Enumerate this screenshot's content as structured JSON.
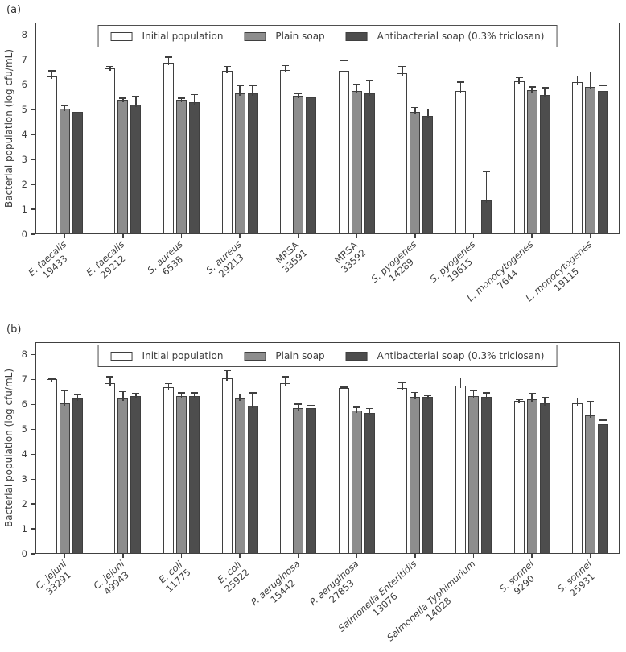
{
  "ylabel": "Bacterial population (log cfu/mL)",
  "chart_data": [
    {
      "type": "bar",
      "panel_label": "(a)",
      "ylabel": "Bacterial population (log cfu/mL)",
      "ylim": [
        0,
        8.5
      ],
      "yticks": [
        0,
        1,
        2,
        3,
        4,
        5,
        6,
        7,
        8
      ],
      "grid": false,
      "legend_position": "top-center-inside",
      "categories": [
        {
          "name": "E. faecalis",
          "strain": "19433",
          "italic": true
        },
        {
          "name": "E. faecalis",
          "strain": "29212",
          "italic": true
        },
        {
          "name": "S. aureus",
          "strain": "6538",
          "italic": true
        },
        {
          "name": "S. aureus",
          "strain": "29213",
          "italic": true
        },
        {
          "name": "MRSA",
          "strain": "33591",
          "italic": false
        },
        {
          "name": "MRSA",
          "strain": "33592",
          "italic": false
        },
        {
          "name": "S. pyogenes",
          "strain": "14289",
          "italic": true
        },
        {
          "name": "S. pyogenes",
          "strain": "19615",
          "italic": true
        },
        {
          "name": "L. monocytogenes",
          "strain": "7644",
          "italic": true
        },
        {
          "name": "L. monocytogenes",
          "strain": "19115",
          "italic": true
        }
      ],
      "series": [
        {
          "name": "Initial population",
          "color": "#ffffff",
          "values": [
            6.35,
            6.65,
            6.9,
            6.55,
            6.6,
            6.55,
            6.45,
            5.75,
            6.15,
            6.1
          ],
          "errors": [
            0.2,
            0.08,
            0.2,
            0.18,
            0.15,
            0.4,
            0.28,
            0.35,
            0.12,
            0.25
          ]
        },
        {
          "name": "Plain soap",
          "color": "#8d8d8d",
          "values": [
            5.05,
            5.4,
            5.4,
            5.65,
            5.55,
            5.75,
            4.9,
            0,
            5.8,
            5.9
          ],
          "errors": [
            0.1,
            0.05,
            0.05,
            0.3,
            0.08,
            0.25,
            0.18,
            0,
            0.1,
            0.6
          ]
        },
        {
          "name": "Antibacterial soap (0.3% triclosan)",
          "color": "#4d4d4d",
          "values": [
            4.9,
            5.2,
            5.3,
            5.65,
            5.5,
            5.65,
            4.75,
            1.35,
            5.6,
            5.75
          ],
          "errors": [
            0,
            0.33,
            0.3,
            0.32,
            0.15,
            0.5,
            0.27,
            1.15,
            0.27,
            0.2
          ]
        }
      ]
    },
    {
      "type": "bar",
      "panel_label": "(b)",
      "ylabel": "Bacterial population (log cfu/mL)",
      "ylim": [
        0,
        8.5
      ],
      "yticks": [
        0,
        1,
        2,
        3,
        4,
        5,
        6,
        7,
        8
      ],
      "grid": false,
      "legend_position": "top-center-inside",
      "categories": [
        {
          "name": "C. jejuni",
          "strain": "33291",
          "italic": true
        },
        {
          "name": "C. jejuni",
          "strain": "49943",
          "italic": true
        },
        {
          "name": "E. coli",
          "strain": "11775",
          "italic": true
        },
        {
          "name": "E. coli",
          "strain": "25922",
          "italic": true
        },
        {
          "name": "P. aeruginosa",
          "strain": "15442",
          "italic": true
        },
        {
          "name": "P. aeruginosa",
          "strain": "27853",
          "italic": true
        },
        {
          "name": "Salmonella Enteritidis",
          "strain": "13076",
          "italic": true
        },
        {
          "name": "Salmonella Typhimurium",
          "strain": "14028",
          "italic": true
        },
        {
          "name": "S. sonnei",
          "strain": "9290",
          "italic": true
        },
        {
          "name": "S. sonnei",
          "strain": "25931",
          "italic": true
        }
      ],
      "series": [
        {
          "name": "Initial population",
          "color": "#ffffff",
          "values": [
            7.0,
            6.85,
            6.7,
            7.05,
            6.85,
            6.65,
            6.65,
            6.75,
            6.15,
            6.05
          ],
          "errors": [
            0.03,
            0.25,
            0.12,
            0.3,
            0.25,
            0.03,
            0.2,
            0.3,
            0.03,
            0.2
          ]
        },
        {
          "name": "Plain soap",
          "color": "#8d8d8d",
          "values": [
            6.05,
            6.25,
            6.35,
            6.25,
            5.85,
            5.75,
            6.3,
            6.35,
            6.2,
            5.55
          ],
          "errors": [
            0.5,
            0.25,
            0.1,
            0.15,
            0.15,
            0.12,
            0.17,
            0.2,
            0.23,
            0.55
          ]
        },
        {
          "name": "Antibacterial soap (0.3% triclosan)",
          "color": "#4d4d4d",
          "values": [
            6.25,
            6.35,
            6.35,
            5.95,
            5.85,
            5.65,
            6.3,
            6.3,
            6.05,
            5.2
          ],
          "errors": [
            0.12,
            0.08,
            0.1,
            0.5,
            0.1,
            0.18,
            0.03,
            0.15,
            0.23,
            0.15
          ]
        }
      ]
    }
  ]
}
